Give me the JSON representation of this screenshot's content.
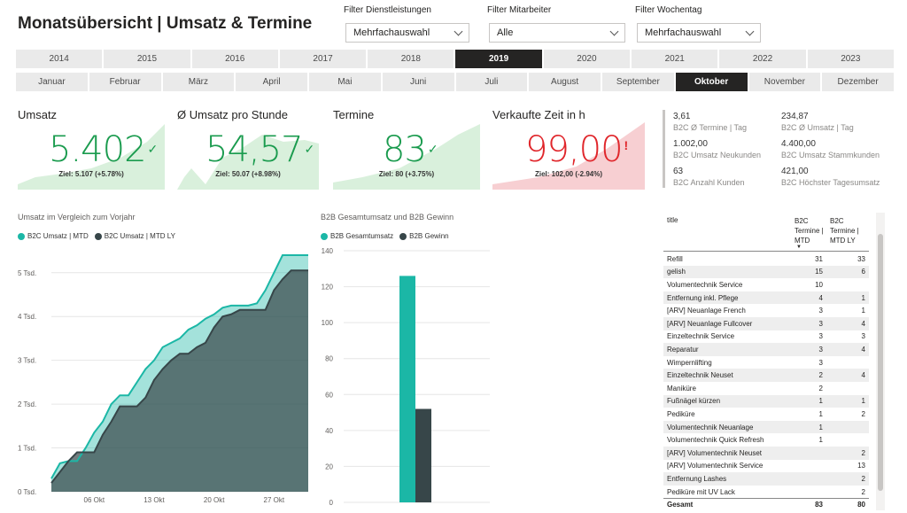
{
  "page": {
    "title": "Monatsübersicht | Umsatz & Termine"
  },
  "filters": {
    "services": {
      "label": "Filter Dienstleistungen",
      "value": "Mehrfachauswahl"
    },
    "staff": {
      "label": "Filter Mitarbeiter",
      "value": "Alle"
    },
    "weekday": {
      "label": "Filter Wochentag",
      "value": "Mehrfachauswahl"
    }
  },
  "years": [
    "2014",
    "2015",
    "2016",
    "2017",
    "2018",
    "2019",
    "2020",
    "2021",
    "2022",
    "2023"
  ],
  "selected_year": "2019",
  "months": [
    "Januar",
    "Februar",
    "März",
    "April",
    "Mai",
    "Juni",
    "Juli",
    "August",
    "September",
    "Oktober",
    "November",
    "Dezember"
  ],
  "selected_month": "Oktober",
  "kpis": [
    {
      "title": "Umsatz",
      "value": "5.402",
      "status": "ok",
      "goal": "Ziel: 5.107 (+5.78%)"
    },
    {
      "title": "Ø Umsatz pro Stunde",
      "value": "54,57",
      "status": "ok",
      "goal": "Ziel: 50.07 (+8.98%)"
    },
    {
      "title": "Termine",
      "value": "83",
      "status": "ok",
      "goal": "Ziel: 80 (+3.75%)"
    },
    {
      "title": "Verkaufte Zeit in h",
      "value": "99,00",
      "status": "bad",
      "goal": "Ziel: 102,00 (-2.94%)"
    }
  ],
  "side_stats": [
    {
      "value": "3,61",
      "label": "B2C Ø Termine | Tag"
    },
    {
      "value": "234,87",
      "label": "B2C Ø Umsatz | Tag"
    },
    {
      "value": "1.002,00",
      "label": "B2C Umsatz Neukunden"
    },
    {
      "value": "4.400,00",
      "label": "B2C Umsatz Stammkunden"
    },
    {
      "value": "63",
      "label": "B2C Anzahl Kunden"
    },
    {
      "value": "421,00",
      "label": "B2C Höchster Tagesumsatz"
    }
  ],
  "colors": {
    "teal": "#1bb7a6",
    "dark": "#374649",
    "green": "#1a9b4e",
    "red": "#e0262b",
    "green_bg": "#d9f0dc",
    "red_bg": "#f7cfd2"
  },
  "chart_data": [
    {
      "type": "area",
      "title": "Umsatz im Vergleich zum Vorjahr",
      "ylim": [
        0,
        5400
      ],
      "y_ticks": [
        "0 Tsd.",
        "1 Tsd.",
        "2 Tsd.",
        "3 Tsd.",
        "4 Tsd.",
        "5 Tsd."
      ],
      "x_ticks": [
        "06 Okt",
        "13 Okt",
        "20 Okt",
        "27 Okt"
      ],
      "x": [
        1,
        2,
        3,
        4,
        5,
        6,
        7,
        8,
        9,
        10,
        11,
        12,
        13,
        14,
        15,
        16,
        17,
        18,
        19,
        20,
        21,
        22,
        23,
        24,
        25,
        26,
        27,
        28,
        29,
        30,
        31
      ],
      "series": [
        {
          "name": "B2C Umsatz | MTD",
          "values": [
            300,
            650,
            700,
            700,
            1000,
            1350,
            1600,
            2000,
            2200,
            2200,
            2500,
            2800,
            3000,
            3300,
            3400,
            3500,
            3700,
            3800,
            3950,
            4050,
            4200,
            4250,
            4250,
            4250,
            4300,
            4600,
            5000,
            5400,
            5400,
            5400,
            5400
          ]
        },
        {
          "name": "B2C Umsatz | MTD LY",
          "values": [
            200,
            450,
            700,
            900,
            900,
            900,
            1300,
            1600,
            1950,
            1950,
            1950,
            2150,
            2550,
            2800,
            3000,
            3150,
            3150,
            3300,
            3400,
            3750,
            4000,
            4050,
            4150,
            4150,
            4150,
            4150,
            4600,
            4850,
            5050,
            5050,
            5050
          ]
        }
      ],
      "grid": true,
      "legend": "top-left"
    },
    {
      "type": "bar",
      "title": "B2B Gesamtumsatz und B2B Gewinn",
      "ylim": [
        0,
        140
      ],
      "y_ticks": [
        "0",
        "20",
        "40",
        "60",
        "80",
        "100",
        "120",
        "140"
      ],
      "series": [
        {
          "name": "B2B Gesamtumsatz",
          "values": [
            126
          ]
        },
        {
          "name": "B2B Gewinn",
          "values": [
            52
          ]
        }
      ],
      "legend": "top-left"
    },
    {
      "type": "table",
      "columns": [
        "title",
        "B2C Termine | MTD",
        "B2C Termine | MTD LY"
      ],
      "rows": [
        [
          "Refill",
          "31",
          "33"
        ],
        [
          "gelish",
          "15",
          "6"
        ],
        [
          "Volumentechnik Service",
          "10",
          ""
        ],
        [
          "Entfernung inkl. Pflege",
          "4",
          "1"
        ],
        [
          "[ARV] Neuanlage French",
          "3",
          "1"
        ],
        [
          "[ARV] Neuanlage Fullcover",
          "3",
          "4"
        ],
        [
          "Einzeltechnik Service",
          "3",
          "3"
        ],
        [
          "Reparatur",
          "3",
          "4"
        ],
        [
          "Wimpernlifting",
          "3",
          ""
        ],
        [
          "Einzeltechnik Neuset",
          "2",
          "4"
        ],
        [
          "Maniküre",
          "2",
          ""
        ],
        [
          "Fußnägel kürzen",
          "1",
          "1"
        ],
        [
          "Pediküre",
          "1",
          "2"
        ],
        [
          "Volumentechnik Neuanlage",
          "1",
          ""
        ],
        [
          "Volumentechnik Quick Refresh",
          "1",
          ""
        ],
        [
          "[ARV] Volumentechnik Neuset",
          "",
          "2"
        ],
        [
          "[ARV] Volumentechnik Service",
          "",
          "13"
        ],
        [
          "Entfernung Lashes",
          "",
          "2"
        ],
        [
          "Pediküre mit UV Lack",
          "",
          "2"
        ]
      ],
      "total": [
        "Gesamt",
        "83",
        "80"
      ]
    }
  ]
}
